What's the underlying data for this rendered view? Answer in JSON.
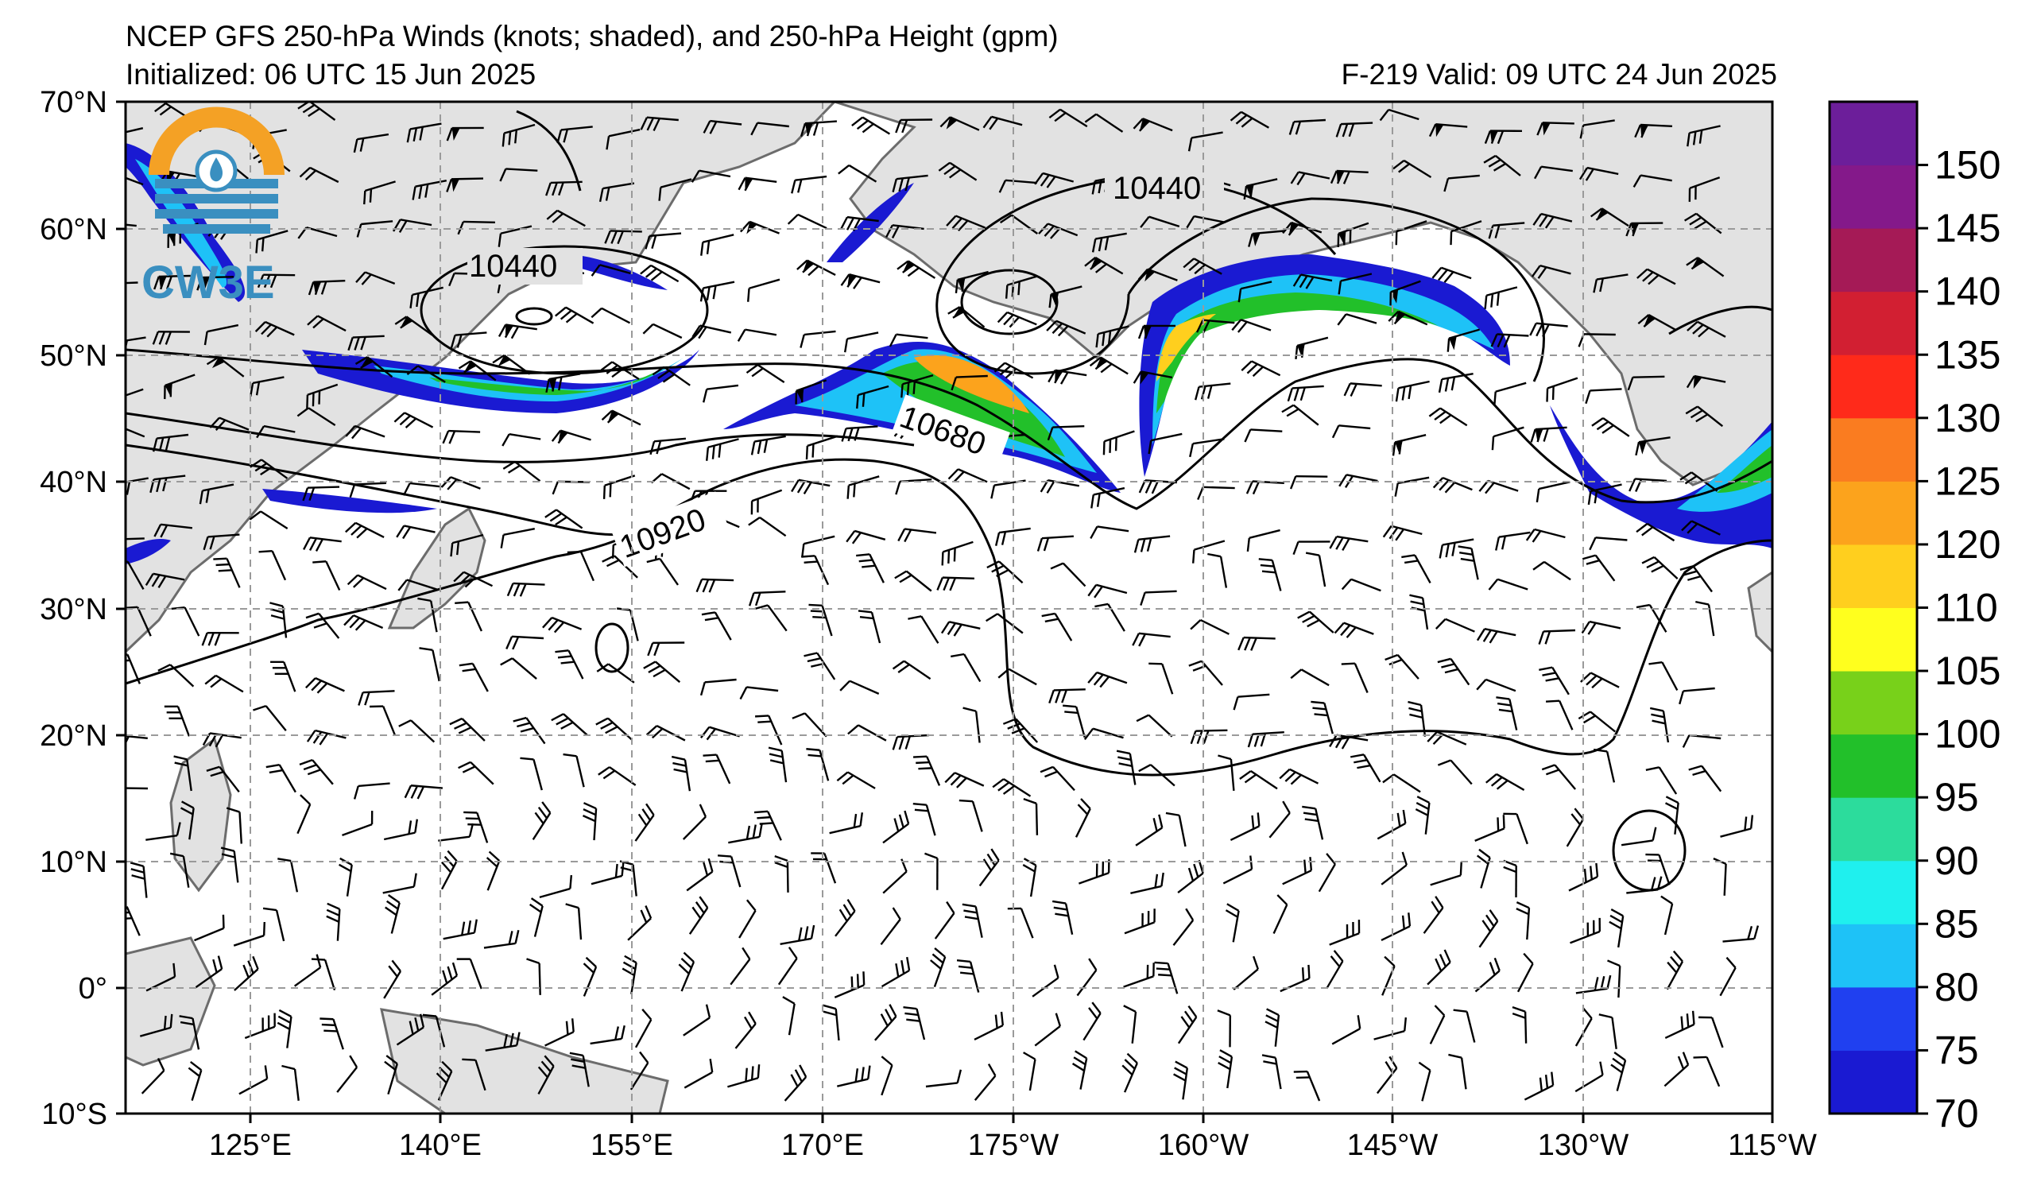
{
  "title": {
    "line1": "NCEP GFS 250-hPa Winds (knots; shaded), and 250-hPa Height (gpm)",
    "line2": "Initialized: 06 UTC 15 Jun 2025",
    "valid": "F-219  Valid: 09 UTC 24 Jun 2025"
  },
  "logo": {
    "text": "CW3E",
    "icon": "cw3e-logo-icon"
  },
  "axes": {
    "lon_labels": [
      "125°E",
      "140°E",
      "155°E",
      "170°E",
      "175°W",
      "160°W",
      "145°W",
      "130°W",
      "115°W"
    ],
    "lat_labels": [
      "70°N",
      "60°N",
      "50°N",
      "40°N",
      "30°N",
      "20°N",
      "10°N",
      "0°",
      "10°S"
    ]
  },
  "contour_labels": [
    "10440",
    "10440",
    "10680",
    "10920"
  ],
  "colorbar": {
    "levels": [
      70,
      75,
      80,
      85,
      90,
      95,
      100,
      105,
      110,
      120,
      125,
      130,
      135,
      140,
      145,
      150
    ],
    "colors": [
      "#1a1ad2",
      "#2040f0",
      "#1ec2f7",
      "#1ff0ee",
      "#2cdc9c",
      "#22c02a",
      "#78d11a",
      "#ffff1e",
      "#ffcf1e",
      "#fca31c",
      "#fa7c20",
      "#ff2a1a",
      "#d21f32",
      "#a51a56",
      "#84198a",
      "#6c1e9a"
    ],
    "labels": [
      "70",
      "75",
      "80",
      "85",
      "90",
      "95",
      "100",
      "105",
      "110",
      "120",
      "125",
      "130",
      "135",
      "140",
      "145",
      "150"
    ]
  },
  "colors": {
    "land": "#e2e2e2",
    "coast": "#6c6c6c",
    "grid": "#9a9a9a"
  }
}
